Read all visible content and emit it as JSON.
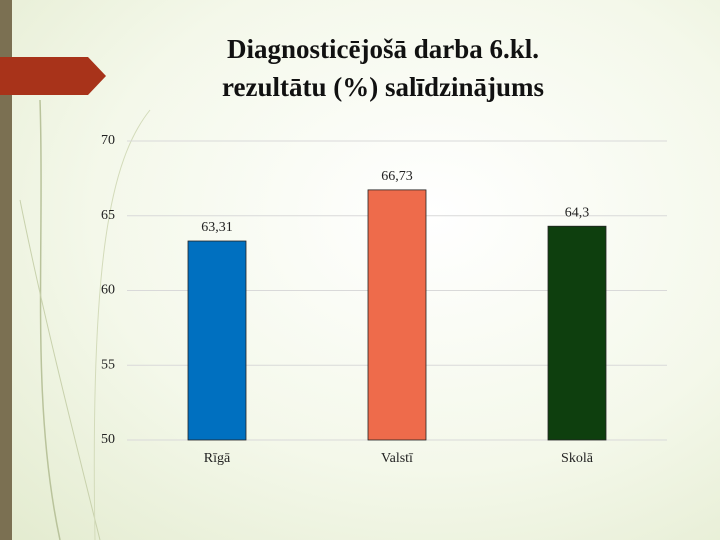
{
  "chart_data": {
    "type": "bar",
    "title": "Diagnosticējošā darba 6.kl. rezultātu (%) salīdzinājums",
    "categories": [
      "Rīgā",
      "Valstī",
      "Skolā"
    ],
    "values": [
      63.31,
      66.73,
      64.3
    ],
    "value_labels": [
      "63,31",
      "66,73",
      "64,3"
    ],
    "colors": [
      "#0070c0",
      "#ee6b4b",
      "#0e3f0e"
    ],
    "ylim": [
      50,
      70
    ],
    "yticks": [
      50,
      55,
      60,
      65,
      70
    ],
    "grid": true
  }
}
